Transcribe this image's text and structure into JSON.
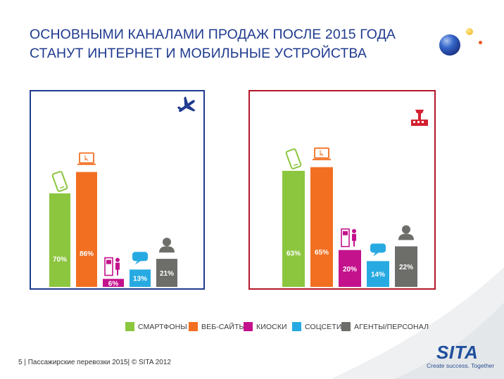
{
  "title_line1": "ОСНОВНЫМИ КАНАЛАМИ ПРОДАЖ ПОСЛЕ 2015 ГОДА",
  "title_line2": "СТАНУТ ИНТЕРНЕТ И МОБИЛЬНЫЕ УСТРОЙСТВА",
  "colors": {
    "smartphones": "#8cc63f",
    "websites": "#f26f21",
    "kiosks": "#c3128c",
    "social": "#27aae1",
    "agents": "#6d6e6a",
    "left_border": "#1f3b8f",
    "right_border": "#b3182a"
  },
  "chart_data": [
    {
      "type": "bar",
      "panel_icon": "airplane-icon",
      "categories": [
        "СМАРТФОНЫ",
        "ВЕБ-САЙТЫ",
        "КИОСКИ",
        "СОЦСЕТИ",
        "АГЕНТЫ/ПЕРСОНАЛ"
      ],
      "values": [
        70,
        86,
        6,
        13,
        21
      ],
      "labels": [
        "70%",
        "86%",
        "6%",
        "13%",
        "21%"
      ],
      "ylim": [
        0,
        100
      ]
    },
    {
      "type": "bar",
      "panel_icon": "airport-icon",
      "categories": [
        "СМАРТФОНЫ",
        "ВЕБ-САЙТЫ",
        "КИОСКИ",
        "СОЦСЕТИ",
        "АГЕНТЫ/ПЕРСОНАЛ"
      ],
      "values": [
        63,
        65,
        20,
        14,
        22
      ],
      "labels": [
        "63%",
        "65%",
        "20%",
        "14%",
        "22%"
      ],
      "ylim": [
        0,
        100
      ]
    }
  ],
  "legend": [
    {
      "label": "СМАРТФОНЫ",
      "color": "#8cc63f"
    },
    {
      "label": "ВЕБ-САЙТЫ",
      "color": "#f26f21"
    },
    {
      "label": "КИОСКИ",
      "color": "#c3128c"
    },
    {
      "label": "СОЦСЕТИ",
      "color": "#27aae1"
    },
    {
      "label": "АГЕНТЫ/ПЕРСОНАЛ",
      "color": "#6d6e6a"
    }
  ],
  "footer": "5  | Пассажирские перевозки 2015| © SITA 2012",
  "logo_text": "SITA",
  "tagline": "Create success. Together"
}
